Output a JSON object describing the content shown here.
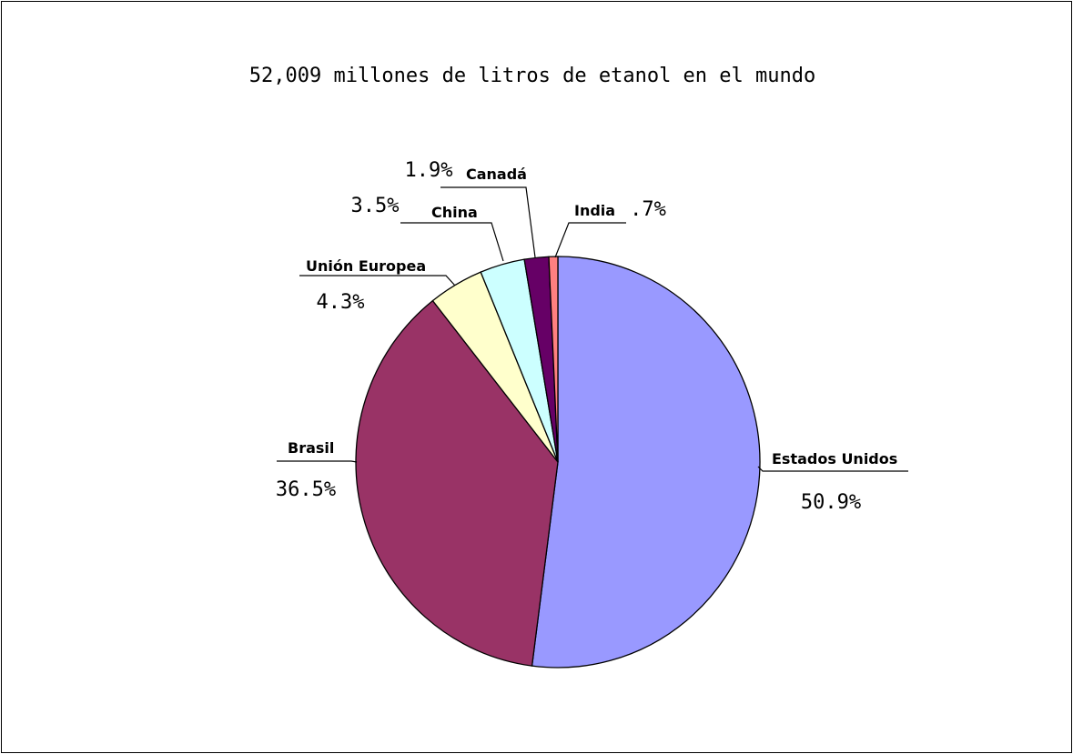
{
  "chart_data": {
    "type": "pie",
    "title": "52,009 millones de litros de etanol en el mundo",
    "slices": [
      {
        "name": "Estados Unidos",
        "label": "50.9%",
        "value": 50.9,
        "color": "#9999ff"
      },
      {
        "name": "Brasil",
        "label": "36.5%",
        "value": 36.5,
        "color": "#993366"
      },
      {
        "name": "Unión Europea",
        "label": "4.3%",
        "value": 4.3,
        "color": "#ffffcc"
      },
      {
        "name": "China",
        "label": "3.5%",
        "value": 3.5,
        "color": "#ccffff"
      },
      {
        "name": "Canadá",
        "label": "1.9%",
        "value": 1.9,
        "color": "#660066"
      },
      {
        "name": "India",
        "label": ".7%",
        "value": 0.7,
        "color": "#ff8080"
      }
    ],
    "start_angle_deg": 0,
    "direction": "clockwise",
    "legend": "none",
    "label_style": "callout"
  }
}
